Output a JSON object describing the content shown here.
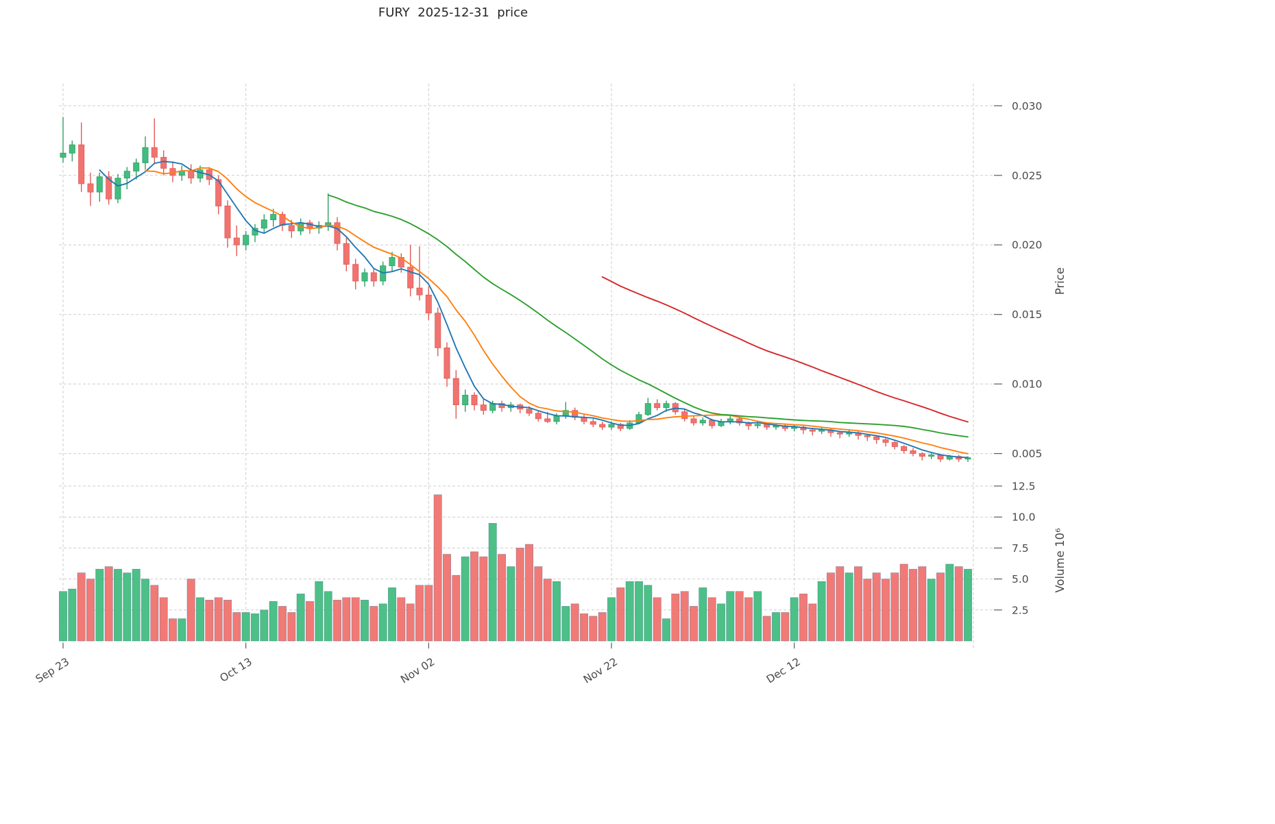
{
  "title": "FURY  2025-12-31  price",
  "chart_data": {
    "type": "candlestick",
    "title": "FURY  2025-12-31  price",
    "price_axis": {
      "label": "Price",
      "ticks": [
        0.005,
        0.01,
        0.015,
        0.02,
        0.025,
        0.03
      ],
      "range": [
        0.0036,
        0.0312
      ]
    },
    "volume_axis": {
      "label": "Volume  10⁶",
      "ticks": [
        2.5,
        5.0,
        7.5,
        10.0,
        12.5
      ],
      "range": [
        0,
        13
      ]
    },
    "x_ticks": [
      {
        "index": 0,
        "label": "Sep 23"
      },
      {
        "index": 20,
        "label": "Oct 13"
      },
      {
        "index": 40,
        "label": "Nov 02"
      },
      {
        "index": 60,
        "label": "Nov 22"
      },
      {
        "index": 80,
        "label": "Dec 12"
      }
    ],
    "moving_averages": [
      {
        "name": "sma5",
        "window": 5,
        "color": "#1f77b4"
      },
      {
        "name": "sma10",
        "window": 10,
        "color": "#ff7f0e"
      },
      {
        "name": "sma30",
        "window": 30,
        "color": "#2ca02c"
      },
      {
        "name": "sma60",
        "window": 60,
        "color": "#d62728"
      }
    ],
    "colors": {
      "up": "#42bd7f",
      "up_edge": "#2f9e63",
      "down": "#f0736f",
      "down_edge": "#e05a56",
      "grid": "#cdcdcd",
      "axis_text": "#4a4a4a",
      "volume_bar_edge": "#47698c"
    },
    "ohlc": [
      [
        0.0263,
        0.0292,
        0.0259,
        0.0266
      ],
      [
        0.0266,
        0.0275,
        0.026,
        0.0272
      ],
      [
        0.0272,
        0.0288,
        0.0238,
        0.0244
      ],
      [
        0.0244,
        0.0252,
        0.0228,
        0.0238
      ],
      [
        0.0238,
        0.0252,
        0.0231,
        0.0249
      ],
      [
        0.0249,
        0.0253,
        0.0229,
        0.0233
      ],
      [
        0.0233,
        0.0251,
        0.023,
        0.0248
      ],
      [
        0.0248,
        0.0256,
        0.024,
        0.0253
      ],
      [
        0.0253,
        0.0262,
        0.0247,
        0.0259
      ],
      [
        0.0259,
        0.0278,
        0.0254,
        0.027
      ],
      [
        0.027,
        0.0291,
        0.0258,
        0.0263
      ],
      [
        0.0263,
        0.0268,
        0.025,
        0.0255
      ],
      [
        0.0255,
        0.026,
        0.0245,
        0.025
      ],
      [
        0.025,
        0.0257,
        0.0246,
        0.0253
      ],
      [
        0.0253,
        0.0258,
        0.0244,
        0.0248
      ],
      [
        0.0248,
        0.0257,
        0.0245,
        0.0254
      ],
      [
        0.0254,
        0.0256,
        0.0243,
        0.0247
      ],
      [
        0.0247,
        0.025,
        0.0222,
        0.0228
      ],
      [
        0.0228,
        0.0232,
        0.0198,
        0.0205
      ],
      [
        0.0205,
        0.0214,
        0.0192,
        0.02
      ],
      [
        0.02,
        0.021,
        0.0196,
        0.0207
      ],
      [
        0.0207,
        0.0215,
        0.0202,
        0.0212
      ],
      [
        0.0212,
        0.0222,
        0.0208,
        0.0218
      ],
      [
        0.0218,
        0.0226,
        0.0213,
        0.0222
      ],
      [
        0.0222,
        0.0224,
        0.021,
        0.0214
      ],
      [
        0.0214,
        0.0218,
        0.0205,
        0.021
      ],
      [
        0.021,
        0.0219,
        0.0207,
        0.0216
      ],
      [
        0.0216,
        0.0218,
        0.0208,
        0.0212
      ],
      [
        0.0212,
        0.0217,
        0.0208,
        0.0214
      ],
      [
        0.0214,
        0.0237,
        0.021,
        0.0216
      ],
      [
        0.0216,
        0.022,
        0.0196,
        0.0201
      ],
      [
        0.0201,
        0.0205,
        0.0181,
        0.0186
      ],
      [
        0.0186,
        0.019,
        0.0168,
        0.0174
      ],
      [
        0.0174,
        0.0183,
        0.017,
        0.018
      ],
      [
        0.018,
        0.0183,
        0.017,
        0.0174
      ],
      [
        0.0174,
        0.0188,
        0.0171,
        0.0185
      ],
      [
        0.0185,
        0.0195,
        0.0181,
        0.0191
      ],
      [
        0.0191,
        0.0194,
        0.018,
        0.0184
      ],
      [
        0.0184,
        0.02,
        0.0163,
        0.0169
      ],
      [
        0.0169,
        0.0199,
        0.016,
        0.0164
      ],
      [
        0.0164,
        0.017,
        0.0146,
        0.0151
      ],
      [
        0.0151,
        0.0155,
        0.012,
        0.0126
      ],
      [
        0.0126,
        0.013,
        0.0098,
        0.0104
      ],
      [
        0.0104,
        0.011,
        0.0075,
        0.0085
      ],
      [
        0.0085,
        0.0096,
        0.008,
        0.0092
      ],
      [
        0.0092,
        0.0094,
        0.0081,
        0.0085
      ],
      [
        0.0085,
        0.0089,
        0.0078,
        0.0081
      ],
      [
        0.0081,
        0.0088,
        0.0079,
        0.0086
      ],
      [
        0.0086,
        0.0088,
        0.008,
        0.0083
      ],
      [
        0.0083,
        0.0087,
        0.008,
        0.0085
      ],
      [
        0.0085,
        0.0086,
        0.0079,
        0.0082
      ],
      [
        0.0082,
        0.0084,
        0.0077,
        0.0079
      ],
      [
        0.0079,
        0.0081,
        0.0073,
        0.0075
      ],
      [
        0.0075,
        0.008,
        0.0072,
        0.0073
      ],
      [
        0.0073,
        0.0079,
        0.0071,
        0.0077
      ],
      [
        0.0077,
        0.0087,
        0.0075,
        0.0081
      ],
      [
        0.0081,
        0.0083,
        0.0074,
        0.0076
      ],
      [
        0.0076,
        0.0078,
        0.0071,
        0.0073
      ],
      [
        0.0073,
        0.0075,
        0.0069,
        0.0071
      ],
      [
        0.0071,
        0.0073,
        0.0067,
        0.0069
      ],
      [
        0.0069,
        0.0073,
        0.0067,
        0.0071
      ],
      [
        0.0071,
        0.0072,
        0.0066,
        0.0068
      ],
      [
        0.0068,
        0.0074,
        0.0067,
        0.0072
      ],
      [
        0.0072,
        0.008,
        0.0071,
        0.0078
      ],
      [
        0.0078,
        0.009,
        0.0077,
        0.0086
      ],
      [
        0.0086,
        0.0089,
        0.0081,
        0.0083
      ],
      [
        0.0083,
        0.0088,
        0.008,
        0.0086
      ],
      [
        0.0086,
        0.0087,
        0.0078,
        0.008
      ],
      [
        0.008,
        0.0082,
        0.0073,
        0.0075
      ],
      [
        0.0075,
        0.0077,
        0.007,
        0.0072
      ],
      [
        0.0072,
        0.0076,
        0.007,
        0.0074
      ],
      [
        0.0074,
        0.0075,
        0.0068,
        0.007
      ],
      [
        0.007,
        0.0075,
        0.0069,
        0.0073
      ],
      [
        0.0073,
        0.0077,
        0.0071,
        0.0075
      ],
      [
        0.0075,
        0.0076,
        0.007,
        0.0072
      ],
      [
        0.0072,
        0.0073,
        0.0067,
        0.007
      ],
      [
        0.007,
        0.0073,
        0.0068,
        0.0071
      ],
      [
        0.0071,
        0.0072,
        0.0067,
        0.0069
      ],
      [
        0.0069,
        0.0072,
        0.0067,
        0.007
      ],
      [
        0.007,
        0.0071,
        0.0066,
        0.0068
      ],
      [
        0.0068,
        0.0071,
        0.0066,
        0.0069
      ],
      [
        0.0069,
        0.007,
        0.0064,
        0.0067
      ],
      [
        0.0067,
        0.0068,
        0.0063,
        0.0066
      ],
      [
        0.0066,
        0.0069,
        0.0064,
        0.0067
      ],
      [
        0.0067,
        0.0068,
        0.0062,
        0.0065
      ],
      [
        0.0065,
        0.0066,
        0.0061,
        0.0064
      ],
      [
        0.0064,
        0.0067,
        0.0062,
        0.0065
      ],
      [
        0.0065,
        0.0066,
        0.006,
        0.0063
      ],
      [
        0.0063,
        0.0064,
        0.0059,
        0.0062
      ],
      [
        0.0062,
        0.0063,
        0.0057,
        0.006
      ],
      [
        0.006,
        0.0061,
        0.0055,
        0.0058
      ],
      [
        0.0058,
        0.0059,
        0.0053,
        0.0055
      ],
      [
        0.0055,
        0.0056,
        0.005,
        0.0052
      ],
      [
        0.0052,
        0.0054,
        0.0048,
        0.005
      ],
      [
        0.005,
        0.0051,
        0.0045,
        0.0048
      ],
      [
        0.0048,
        0.0051,
        0.0046,
        0.0049
      ],
      [
        0.0049,
        0.005,
        0.0044,
        0.0046
      ],
      [
        0.0046,
        0.0049,
        0.0045,
        0.0048
      ],
      [
        0.0048,
        0.0049,
        0.0044,
        0.0046
      ],
      [
        0.0046,
        0.0048,
        0.0044,
        0.0047
      ]
    ],
    "volume": [
      4.0,
      4.2,
      5.5,
      5.0,
      5.8,
      6.0,
      5.8,
      5.5,
      5.8,
      5.0,
      4.5,
      3.5,
      1.8,
      1.8,
      5.0,
      3.5,
      3.3,
      3.5,
      3.3,
      2.3,
      2.3,
      2.2,
      2.5,
      3.2,
      2.8,
      2.3,
      3.8,
      3.2,
      4.8,
      4.0,
      3.3,
      3.5,
      3.5,
      3.3,
      2.8,
      3.0,
      4.3,
      3.5,
      3.0,
      4.5,
      4.5,
      11.8,
      7.0,
      5.3,
      6.8,
      7.2,
      6.8,
      9.5,
      7.0,
      6.0,
      7.5,
      7.8,
      6.0,
      5.0,
      4.8,
      2.8,
      3.0,
      2.2,
      2.0,
      2.3,
      3.5,
      4.3,
      4.8,
      4.8,
      4.5,
      3.5,
      1.8,
      3.8,
      4.0,
      2.8,
      4.3,
      3.5,
      3.0,
      4.0,
      4.0,
      3.5,
      4.0,
      2.0,
      2.3,
      2.3,
      3.5,
      3.8,
      3.0,
      4.8,
      5.5,
      6.0,
      5.5,
      6.0,
      5.0,
      5.5,
      5.0,
      5.5,
      6.2,
      5.8,
      6.0,
      5.0,
      5.5,
      6.2,
      6.0,
      5.8
    ]
  }
}
